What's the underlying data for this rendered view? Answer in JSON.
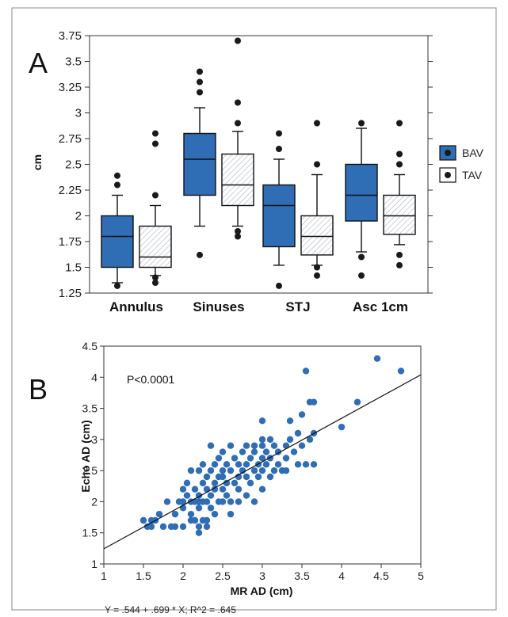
{
  "chart_data": [
    {
      "panel_label": "A",
      "type": "boxplot",
      "ylabel": "cm",
      "ylim": [
        1.25,
        3.75
      ],
      "yticks": [
        "1.25",
        "1.5",
        "1.75",
        "2",
        "2.25",
        "2.5",
        "2.75",
        "3",
        "3.25",
        "3.5",
        "3.75"
      ],
      "categories": [
        "Annulus",
        "Sinuses",
        "STJ",
        "Asc 1cm"
      ],
      "legend": {
        "position": "right",
        "entries": [
          {
            "name": "BAV",
            "color": "#2f6db5"
          },
          {
            "name": "TAV",
            "color": "#ffffff"
          }
        ]
      },
      "series": [
        {
          "name": "BAV",
          "color": "#2f6db5",
          "boxes": [
            {
              "whisker_low": 1.35,
              "q1": 1.5,
              "median": 1.8,
              "q3": 2.0,
              "whisker_high": 2.2,
              "outliers": [
                1.32,
                2.3,
                2.39
              ]
            },
            {
              "whisker_low": 1.9,
              "q1": 2.2,
              "median": 2.55,
              "q3": 2.8,
              "whisker_high": 3.05,
              "outliers": [
                1.62,
                3.2,
                3.3,
                3.4
              ]
            },
            {
              "whisker_low": 1.52,
              "q1": 1.7,
              "median": 2.1,
              "q3": 2.3,
              "whisker_high": 2.55,
              "outliers": [
                1.32,
                2.65,
                2.8
              ]
            },
            {
              "whisker_low": 1.65,
              "q1": 1.95,
              "median": 2.2,
              "q3": 2.5,
              "whisker_high": 2.85,
              "outliers": [
                1.6,
                1.42,
                2.9
              ]
            }
          ]
        },
        {
          "name": "TAV",
          "color": "#ffffff",
          "boxes": [
            {
              "whisker_low": 1.42,
              "q1": 1.5,
              "median": 1.6,
              "q3": 1.9,
              "whisker_high": 2.1,
              "outliers": [
                1.35,
                1.4,
                2.2,
                2.7,
                2.8
              ]
            },
            {
              "whisker_low": 1.9,
              "q1": 2.1,
              "median": 2.3,
              "q3": 2.6,
              "whisker_high": 2.82,
              "outliers": [
                1.8,
                1.85,
                2.9,
                3.1,
                3.7
              ]
            },
            {
              "whisker_low": 1.52,
              "q1": 1.62,
              "median": 1.8,
              "q3": 2.0,
              "whisker_high": 2.4,
              "outliers": [
                1.42,
                1.5,
                2.5,
                2.9
              ]
            },
            {
              "whisker_low": 1.72,
              "q1": 1.82,
              "median": 2.0,
              "q3": 2.2,
              "whisker_high": 2.4,
              "outliers": [
                1.52,
                1.62,
                2.5,
                2.6,
                2.9
              ]
            }
          ]
        }
      ]
    },
    {
      "panel_label": "B",
      "type": "scatter",
      "xlabel": "MR AD (cm)",
      "ylabel": "Echo AD (cm)",
      "xlim": [
        1,
        5
      ],
      "ylim": [
        1,
        4.5
      ],
      "xticks": [
        "1",
        "1.5",
        "2",
        "2.5",
        "3",
        "3.5",
        "4",
        "4.5",
        "5"
      ],
      "yticks": [
        "1",
        "1.5",
        "2",
        "2.5",
        "3",
        "3.5",
        "4",
        "4.5"
      ],
      "annotation": "P<0.0001",
      "equation": "Y = .544 + .699 * X; R^2 = .645",
      "regression": {
        "intercept": 0.544,
        "slope": 0.699
      },
      "point_color": "#2f6db5",
      "points": [
        [
          1.5,
          1.7
        ],
        [
          1.55,
          1.6
        ],
        [
          1.6,
          1.7
        ],
        [
          1.6,
          1.6
        ],
        [
          1.65,
          1.7
        ],
        [
          1.7,
          1.8
        ],
        [
          1.75,
          1.6
        ],
        [
          1.8,
          2.0
        ],
        [
          1.85,
          1.6
        ],
        [
          1.9,
          1.6
        ],
        [
          1.9,
          1.8
        ],
        [
          1.95,
          2.0
        ],
        [
          2.0,
          1.6
        ],
        [
          2.0,
          1.9
        ],
        [
          2.0,
          2.0
        ],
        [
          2.0,
          2.2
        ],
        [
          2.05,
          2.1
        ],
        [
          2.05,
          2.3
        ],
        [
          2.1,
          1.8
        ],
        [
          2.1,
          2.0
        ],
        [
          2.1,
          2.5
        ],
        [
          2.15,
          2.0
        ],
        [
          2.15,
          2.2
        ],
        [
          2.2,
          1.9
        ],
        [
          2.2,
          2.0
        ],
        [
          2.2,
          2.1
        ],
        [
          2.2,
          2.5
        ],
        [
          2.25,
          2.0
        ],
        [
          2.25,
          2.3
        ],
        [
          2.25,
          2.6
        ],
        [
          2.3,
          1.7
        ],
        [
          2.3,
          2.0
        ],
        [
          2.3,
          2.2
        ],
        [
          2.3,
          2.4
        ],
        [
          2.1,
          1.7
        ],
        [
          2.15,
          1.7
        ],
        [
          2.2,
          1.6
        ],
        [
          2.25,
          1.7
        ],
        [
          2.2,
          1.5
        ],
        [
          2.3,
          1.6
        ],
        [
          2.35,
          1.9
        ],
        [
          2.35,
          2.1
        ],
        [
          2.35,
          2.5
        ],
        [
          2.35,
          2.9
        ],
        [
          2.4,
          1.8
        ],
        [
          2.4,
          2.2
        ],
        [
          2.4,
          2.3
        ],
        [
          2.4,
          2.6
        ],
        [
          2.45,
          2.0
        ],
        [
          2.45,
          2.4
        ],
        [
          2.45,
          2.7
        ],
        [
          2.5,
          2.0
        ],
        [
          2.5,
          2.2
        ],
        [
          2.5,
          2.4
        ],
        [
          2.5,
          2.5
        ],
        [
          2.5,
          2.8
        ],
        [
          2.55,
          2.1
        ],
        [
          2.55,
          2.3
        ],
        [
          2.55,
          2.6
        ],
        [
          2.6,
          1.8
        ],
        [
          2.6,
          2.0
        ],
        [
          2.6,
          2.5
        ],
        [
          2.6,
          2.9
        ],
        [
          2.65,
          2.3
        ],
        [
          2.65,
          2.7
        ],
        [
          2.7,
          2.0
        ],
        [
          2.7,
          2.2
        ],
        [
          2.7,
          2.4
        ],
        [
          2.7,
          2.6
        ],
        [
          2.75,
          2.5
        ],
        [
          2.75,
          2.8
        ],
        [
          2.8,
          2.1
        ],
        [
          2.8,
          2.4
        ],
        [
          2.8,
          2.6
        ],
        [
          2.8,
          2.9
        ],
        [
          2.85,
          2.3
        ],
        [
          2.85,
          2.7
        ],
        [
          2.9,
          2.0
        ],
        [
          2.9,
          2.5
        ],
        [
          2.9,
          2.8
        ],
        [
          2.95,
          2.4
        ],
        [
          2.95,
          2.6
        ],
        [
          3.0,
          2.2
        ],
        [
          3.0,
          2.5
        ],
        [
          3.0,
          2.7
        ],
        [
          3.0,
          2.9
        ],
        [
          3.0,
          3.3
        ],
        [
          3.05,
          2.6
        ],
        [
          3.05,
          2.8
        ],
        [
          3.1,
          2.4
        ],
        [
          3.1,
          2.7
        ],
        [
          3.1,
          3.0
        ],
        [
          3.15,
          2.5
        ],
        [
          3.15,
          2.9
        ],
        [
          3.2,
          2.6
        ],
        [
          3.2,
          2.8
        ],
        [
          3.25,
          2.5
        ],
        [
          3.3,
          2.7
        ],
        [
          3.3,
          2.9
        ],
        [
          3.35,
          3.0
        ],
        [
          3.35,
          3.3
        ],
        [
          3.4,
          2.8
        ],
        [
          3.45,
          2.6
        ],
        [
          3.45,
          3.1
        ],
        [
          3.5,
          2.9
        ],
        [
          3.5,
          3.4
        ],
        [
          3.55,
          2.6
        ],
        [
          3.55,
          4.1
        ],
        [
          3.6,
          3.0
        ],
        [
          3.6,
          3.6
        ],
        [
          3.65,
          2.6
        ],
        [
          3.65,
          3.6
        ],
        [
          3.65,
          3.1
        ],
        [
          4.0,
          3.2
        ],
        [
          4.2,
          3.6
        ],
        [
          4.45,
          4.3
        ],
        [
          4.75,
          4.1
        ],
        [
          3.3,
          2.5
        ],
        [
          3.0,
          3.0
        ],
        [
          2.9,
          2.9
        ]
      ]
    }
  ]
}
